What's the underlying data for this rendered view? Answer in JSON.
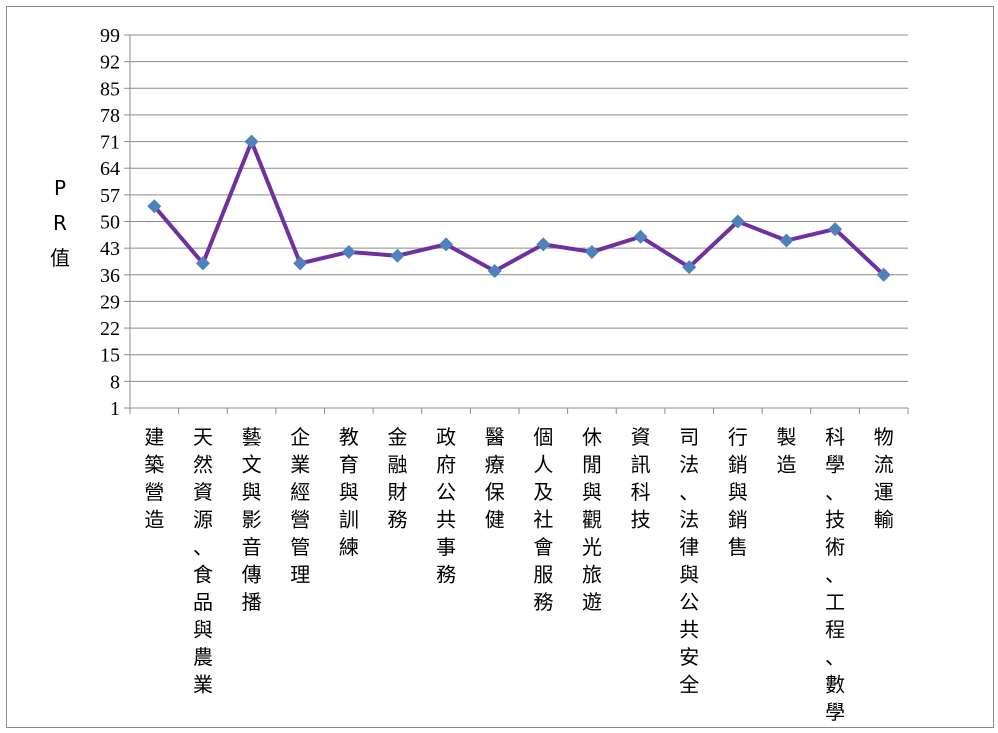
{
  "chart_data": {
    "type": "line",
    "title": "",
    "xlabel": "",
    "ylabel": "PR值",
    "yticks": [
      1,
      8,
      15,
      22,
      29,
      36,
      43,
      50,
      57,
      64,
      71,
      78,
      85,
      92,
      99
    ],
    "ylim": [
      1,
      99
    ],
    "grid": true,
    "legend": "none",
    "categories": [
      "建築營造",
      "天然資源、食品與農業",
      "藝文與影音傳播",
      "企業經營管理",
      "教育與訓練",
      "金融財務",
      "政府公共事務",
      "醫療保健",
      "個人及社會服務",
      "休閒與觀光旅遊",
      "資訊科技",
      "司法、法律與公共安全",
      "行銷與銷售",
      "製造",
      "科學、技術、工程、數學",
      "物流運輸"
    ],
    "series": [
      {
        "values": [
          54,
          39,
          71,
          39,
          42,
          41,
          44,
          37,
          44,
          42,
          46,
          38,
          50,
          45,
          48,
          36
        ],
        "line_color": "#7030a0",
        "marker_color": "#4f81bd"
      }
    ]
  }
}
